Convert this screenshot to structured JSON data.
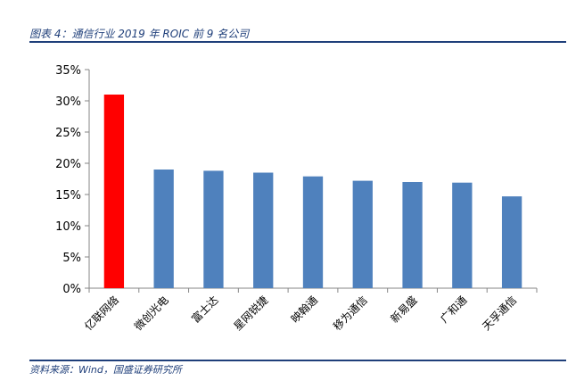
{
  "figure": {
    "title": "图表 4：通信行业 2019 年 ROIC 前 9 名公司",
    "source": "资料来源：Wind，国盛证券研究所"
  },
  "chart_data": {
    "type": "bar",
    "categories": [
      "亿联网络",
      "微创光电",
      "富士达",
      "星网锐捷",
      "映翰通",
      "移为通信",
      "新易盛",
      "广和通",
      "天孚通信"
    ],
    "values": [
      31.0,
      19.0,
      18.8,
      18.5,
      17.9,
      17.2,
      17.0,
      16.9,
      14.7
    ],
    "value_unit": "%",
    "ylim": [
      0,
      35
    ],
    "yticks": [
      0,
      5,
      10,
      15,
      20,
      25,
      30,
      35
    ],
    "ytick_labels": [
      "0%",
      "5%",
      "10%",
      "15%",
      "20%",
      "25%",
      "30%",
      "35%"
    ],
    "colors": {
      "highlight": "#ff0000",
      "default": "#4f81bd"
    },
    "highlight_index": 0,
    "grid": false,
    "legend": "none"
  }
}
